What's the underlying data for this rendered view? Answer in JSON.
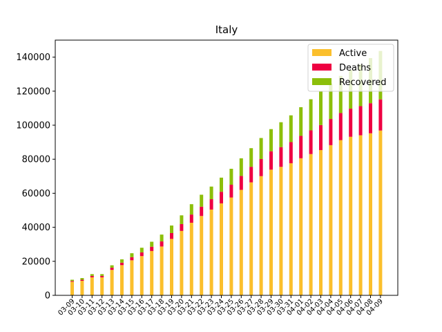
{
  "chart_data": {
    "type": "bar",
    "stacked": true,
    "title": "Italy",
    "xlabel": "",
    "ylabel": "",
    "ylim": [
      0,
      150000
    ],
    "yticks": [
      0,
      20000,
      40000,
      60000,
      80000,
      100000,
      120000,
      140000
    ],
    "ytick_labels": [
      "0",
      "20000",
      "40000",
      "60000",
      "80000",
      "100000",
      "120000",
      "140000"
    ],
    "grid": false,
    "legend_position": "top-right",
    "categories": [
      "03-09",
      "03-10",
      "03-11",
      "03-12",
      "03-13",
      "03-14",
      "03-15",
      "03-16",
      "03-17",
      "03-18",
      "03-19",
      "03-20",
      "03-21",
      "03-22",
      "03-23",
      "03-24",
      "03-25",
      "03-26",
      "03-27",
      "03-28",
      "03-29",
      "03-30",
      "03-31",
      "04-01",
      "04-02",
      "04-03",
      "04-04",
      "04-05",
      "04-06",
      "04-07",
      "04-08",
      "04-09"
    ],
    "series": [
      {
        "name": "Active",
        "color": "#fbbf2c",
        "values": [
          7985,
          8514,
          10590,
          10590,
          14955,
          17750,
          20603,
          23073,
          26062,
          28710,
          33190,
          37860,
          42681,
          46638,
          50418,
          54030,
          57521,
          62013,
          66414,
          70065,
          73880,
          75528,
          77635,
          80572,
          83049,
          85388,
          88274,
          91246,
          93187,
          94067,
          95262,
          96877
        ]
      },
      {
        "name": "Deaths",
        "color": "#ee0042",
        "values": [
          463,
          631,
          827,
          827,
          1266,
          1441,
          1809,
          2158,
          2503,
          2978,
          3405,
          4032,
          4825,
          5476,
          6077,
          6820,
          7503,
          8165,
          9134,
          10023,
          10779,
          11591,
          12428,
          13155,
          13915,
          14681,
          15362,
          15887,
          16523,
          17127,
          17669,
          18279
        ]
      },
      {
        "name": "Recovered",
        "color": "#8cbf0a",
        "values": [
          724,
          1004,
          1045,
          1045,
          1439,
          1966,
          2335,
          2749,
          2941,
          4025,
          4440,
          5129,
          6072,
          7024,
          7432,
          8326,
          9362,
          10361,
          10950,
          12384,
          13030,
          14620,
          15729,
          16847,
          18278,
          19758,
          20996,
          21815,
          22837,
          24392,
          26491,
          28470
        ]
      }
    ]
  }
}
